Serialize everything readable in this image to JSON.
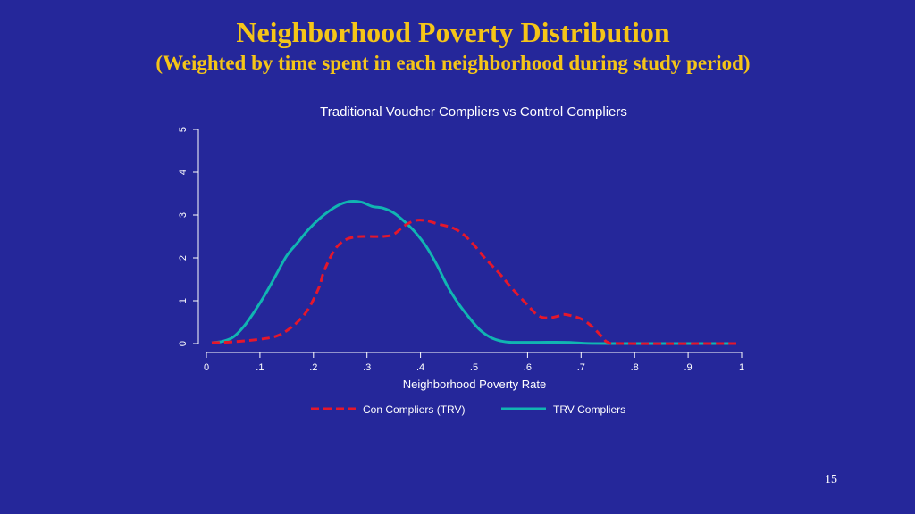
{
  "slide": {
    "title": "Neighborhood Poverty Distribution",
    "subtitle": "(Weighted by time spent in each neighborhood during study period)",
    "page_number": "15"
  },
  "colors": {
    "background": "#25279a",
    "title": "#f5c518",
    "series_control": "#e5172b",
    "series_trv": "#11b5b2"
  },
  "chart_data": {
    "type": "line",
    "title": "Traditional Voucher Compliers vs Control Compliers",
    "xlabel": "Neighborhood Poverty Rate",
    "ylabel": "",
    "xlim": [
      0,
      1
    ],
    "ylim": [
      0,
      5
    ],
    "xticks": [
      "0",
      ".1",
      ".2",
      ".3",
      ".4",
      ".5",
      ".6",
      ".7",
      ".8",
      ".9",
      "1"
    ],
    "yticks": [
      "0",
      "1",
      "2",
      "3",
      "4",
      "5"
    ],
    "grid": false,
    "legend_position": "bottom",
    "series": [
      {
        "name": "Con Compliers (TRV)",
        "style": "dashed",
        "points": [
          [
            0.01,
            0.02
          ],
          [
            0.05,
            0.04
          ],
          [
            0.1,
            0.1
          ],
          [
            0.13,
            0.17
          ],
          [
            0.15,
            0.3
          ],
          [
            0.17,
            0.5
          ],
          [
            0.19,
            0.8
          ],
          [
            0.21,
            1.3
          ],
          [
            0.22,
            1.7
          ],
          [
            0.24,
            2.2
          ],
          [
            0.26,
            2.42
          ],
          [
            0.28,
            2.49
          ],
          [
            0.3,
            2.5
          ],
          [
            0.33,
            2.5
          ],
          [
            0.35,
            2.55
          ],
          [
            0.37,
            2.75
          ],
          [
            0.39,
            2.87
          ],
          [
            0.41,
            2.87
          ],
          [
            0.43,
            2.8
          ],
          [
            0.46,
            2.7
          ],
          [
            0.48,
            2.55
          ],
          [
            0.5,
            2.3
          ],
          [
            0.52,
            2.0
          ],
          [
            0.55,
            1.6
          ],
          [
            0.57,
            1.3
          ],
          [
            0.6,
            0.9
          ],
          [
            0.62,
            0.65
          ],
          [
            0.64,
            0.6
          ],
          [
            0.66,
            0.65
          ],
          [
            0.67,
            0.68
          ],
          [
            0.7,
            0.58
          ],
          [
            0.72,
            0.4
          ],
          [
            0.74,
            0.15
          ],
          [
            0.75,
            0.03
          ],
          [
            0.78,
            0.0
          ],
          [
            0.99,
            0.0
          ]
        ]
      },
      {
        "name": "TRV Compliers",
        "style": "solid",
        "points": [
          [
            0.01,
            0.02
          ],
          [
            0.03,
            0.05
          ],
          [
            0.05,
            0.15
          ],
          [
            0.07,
            0.4
          ],
          [
            0.09,
            0.75
          ],
          [
            0.11,
            1.15
          ],
          [
            0.13,
            1.6
          ],
          [
            0.15,
            2.05
          ],
          [
            0.17,
            2.35
          ],
          [
            0.19,
            2.65
          ],
          [
            0.21,
            2.9
          ],
          [
            0.23,
            3.1
          ],
          [
            0.25,
            3.25
          ],
          [
            0.27,
            3.32
          ],
          [
            0.29,
            3.3
          ],
          [
            0.31,
            3.2
          ],
          [
            0.33,
            3.16
          ],
          [
            0.35,
            3.05
          ],
          [
            0.37,
            2.85
          ],
          [
            0.39,
            2.6
          ],
          [
            0.41,
            2.28
          ],
          [
            0.43,
            1.85
          ],
          [
            0.45,
            1.35
          ],
          [
            0.47,
            0.95
          ],
          [
            0.49,
            0.62
          ],
          [
            0.51,
            0.33
          ],
          [
            0.53,
            0.15
          ],
          [
            0.55,
            0.06
          ],
          [
            0.57,
            0.03
          ],
          [
            0.62,
            0.03
          ],
          [
            0.67,
            0.03
          ],
          [
            0.7,
            0.01
          ],
          [
            0.75,
            0.0
          ],
          [
            0.99,
            0.0
          ]
        ]
      }
    ]
  }
}
